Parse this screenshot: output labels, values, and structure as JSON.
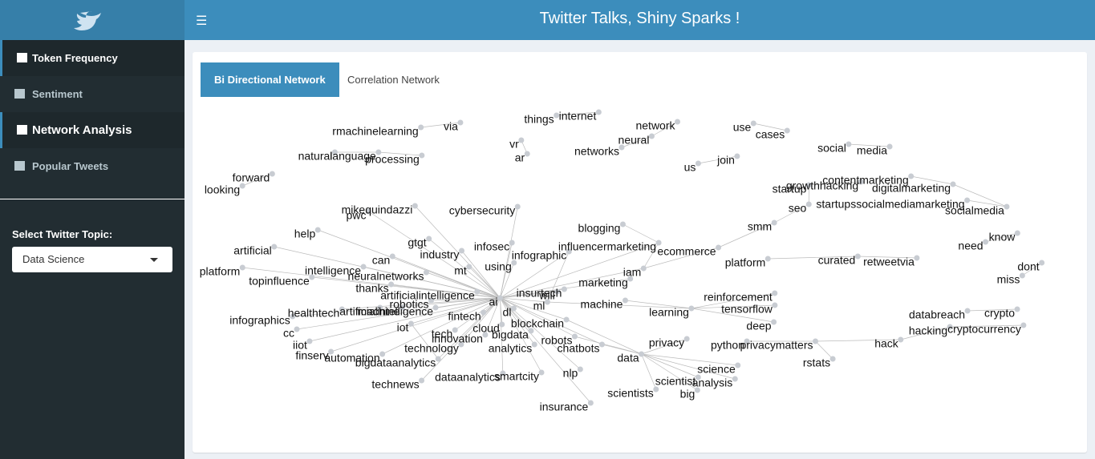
{
  "header": {
    "title": "Twitter Talks, Shiny Sparks !"
  },
  "sidebar": {
    "menu": [
      "Token Frequency",
      "Sentiment",
      "Network Analysis",
      "Popular Tweets"
    ],
    "select_label": "Select Twitter Topic:",
    "select_value": "Data Science"
  },
  "tabs": [
    "Bi Directional Network",
    "Correlation Network"
  ],
  "network": {
    "nodes": [
      "rmachinelearning",
      "via",
      "natural",
      "language",
      "processing",
      "things",
      "internet",
      "vr",
      "ar",
      "network",
      "neural",
      "networks",
      "use",
      "cases",
      "us",
      "join",
      "social",
      "media",
      "forward",
      "looking",
      "contentmarketing",
      "growthhacking",
      "startup",
      "digitalmarketing",
      "seo",
      "startupssocialmediamarketing",
      "socialmedia",
      "smm",
      "mikequindazzi",
      "pwc",
      "cybersecurity",
      "help",
      "blogging",
      "know",
      "need",
      "artificial",
      "gtgt",
      "infosec",
      "influencermarketing",
      "ecommerce",
      "industry",
      "infographic",
      "can",
      "platform",
      "curated",
      "retweetvia",
      "platform",
      "intelligence",
      "using",
      "dont",
      "mt",
      "iam",
      "neuralnetworks",
      "topinfluence",
      "miss",
      "thanks",
      "marketing",
      "artificialintelligence",
      "insurtech",
      "ai",
      "will",
      "reinforcement",
      "robotics",
      "ml",
      "machine",
      "learning",
      "tensorflow",
      "healthtech",
      "artificial",
      "machine",
      "intelligence",
      "fintech",
      "dl",
      "databreach",
      "crypto",
      "infographics",
      "blockchain",
      "deep",
      "iot",
      "cloud",
      "hacking",
      "cryptocurrency",
      "cc",
      "tech",
      "bigdata",
      "innovation",
      "robots",
      "privacy",
      "python",
      "privacymatters",
      "hack",
      "iiot",
      "technology",
      "analytics",
      "chatbots",
      "finserv",
      "automation",
      "data",
      "rstats",
      "bigdataanalytics",
      "science",
      "nlp",
      "smartcity",
      "dataanalytics",
      "scientist",
      "analysis",
      "technews",
      "scientists",
      "big",
      "insurance"
    ]
  }
}
